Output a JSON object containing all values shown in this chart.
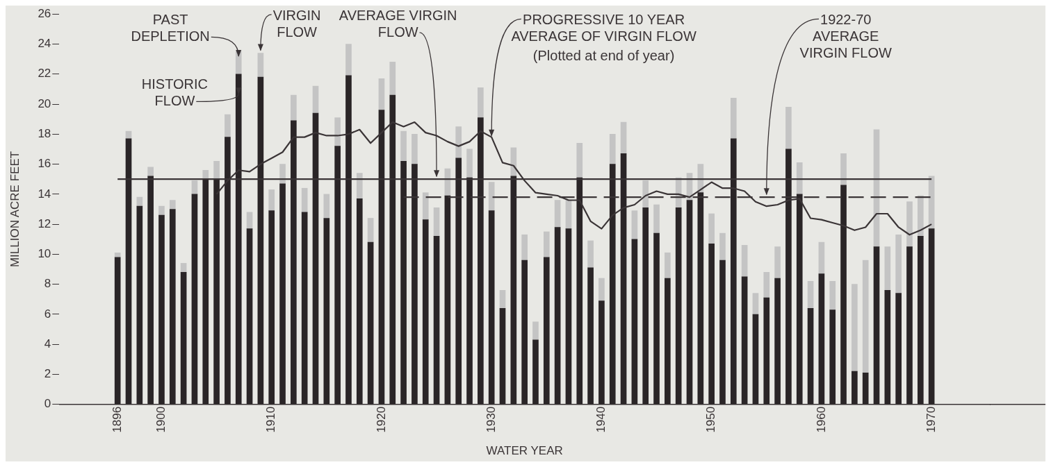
{
  "chart_data": {
    "type": "bar",
    "xlabel": "WATER YEAR",
    "ylabel": "MILLION ACRE FEET",
    "x": [
      1896,
      1897,
      1898,
      1899,
      1900,
      1901,
      1902,
      1903,
      1904,
      1905,
      1906,
      1907,
      1908,
      1909,
      1910,
      1911,
      1912,
      1913,
      1914,
      1915,
      1916,
      1917,
      1918,
      1919,
      1920,
      1921,
      1922,
      1923,
      1924,
      1925,
      1926,
      1927,
      1928,
      1929,
      1930,
      1931,
      1932,
      1933,
      1934,
      1935,
      1936,
      1937,
      1938,
      1939,
      1940,
      1941,
      1942,
      1943,
      1944,
      1945,
      1946,
      1947,
      1948,
      1949,
      1950,
      1951,
      1952,
      1953,
      1954,
      1955,
      1956,
      1957,
      1958,
      1959,
      1960,
      1961,
      1962,
      1963,
      1964,
      1965,
      1966,
      1967,
      1968,
      1969,
      1970
    ],
    "stacked": true,
    "series": [
      {
        "color": "#2a2527",
        "values": [
          9.8,
          17.7,
          13.2,
          15.2,
          12.6,
          13.0,
          8.8,
          14.0,
          15.0,
          15.0,
          17.8,
          22.0,
          11.7,
          21.8,
          12.9,
          14.7,
          18.9,
          12.8,
          19.4,
          12.4,
          17.2,
          21.9,
          13.7,
          10.8,
          19.6,
          20.6,
          16.2,
          16.0,
          12.3,
          11.2,
          13.9,
          16.4,
          15.1,
          19.1,
          12.9,
          6.4,
          15.2,
          9.6,
          4.3,
          9.8,
          11.8,
          11.7,
          15.1,
          9.1,
          6.9,
          16.0,
          16.7,
          11.0,
          13.1,
          11.4,
          8.4,
          13.1,
          13.6,
          14.1,
          10.7,
          9.6,
          17.7,
          8.5,
          6.0,
          7.1,
          8.4,
          17.0,
          14.0,
          6.4,
          8.7,
          6.3,
          14.6,
          2.2,
          2.1,
          10.5,
          7.6,
          7.4,
          10.5,
          11.2,
          11.7
        ]
      },
      {
        "color": "#c4c4c4",
        "values": [
          0.3,
          0.5,
          0.6,
          0.6,
          0.6,
          0.6,
          0.6,
          0.9,
          0.6,
          1.2,
          1.5,
          1.5,
          1.1,
          1.6,
          1.4,
          1.3,
          1.7,
          1.6,
          1.8,
          1.6,
          1.9,
          2.1,
          1.7,
          1.6,
          2.1,
          2.2,
          2.0,
          2.0,
          1.8,
          1.9,
          1.8,
          2.1,
          1.9,
          2.0,
          1.9,
          1.2,
          1.9,
          1.7,
          1.2,
          1.7,
          1.8,
          1.9,
          2.3,
          1.8,
          1.5,
          2.0,
          2.1,
          1.9,
          1.8,
          1.9,
          1.7,
          2.0,
          1.8,
          1.9,
          2.0,
          1.8,
          2.7,
          2.1,
          1.4,
          1.7,
          2.1,
          2.8,
          2.1,
          1.8,
          2.1,
          1.9,
          2.1,
          5.8,
          7.5,
          7.8,
          2.9,
          3.9,
          3.0,
          2.7,
          3.5
        ]
      },
      {
        "type": "line",
        "color": "#3a3436",
        "x": [
          1905,
          1906,
          1907,
          1908,
          1909,
          1910,
          1911,
          1912,
          1913,
          1914,
          1915,
          1916,
          1917,
          1918,
          1919,
          1920,
          1921,
          1922,
          1923,
          1924,
          1925,
          1926,
          1927,
          1928,
          1929,
          1930,
          1931,
          1932,
          1933,
          1934,
          1935,
          1936,
          1937,
          1938,
          1939,
          1940,
          1941,
          1942,
          1943,
          1944,
          1945,
          1946,
          1947,
          1948,
          1949,
          1950,
          1951,
          1952,
          1953,
          1954,
          1955,
          1956,
          1957,
          1958,
          1959,
          1960,
          1961,
          1962,
          1963,
          1964,
          1965,
          1966,
          1967,
          1968,
          1969,
          1970
        ],
        "values": [
          14.0,
          14.9,
          15.6,
          15.5,
          16.0,
          16.4,
          16.8,
          17.8,
          17.8,
          18.1,
          17.9,
          17.9,
          18.0,
          18.3,
          17.4,
          18.1,
          18.8,
          18.5,
          18.8,
          18.1,
          17.9,
          17.5,
          17.2,
          17.5,
          18.2,
          17.8,
          16.1,
          15.9,
          14.9,
          14.1,
          14.0,
          13.9,
          13.6,
          13.6,
          12.2,
          11.7,
          12.6,
          13.1,
          13.3,
          13.9,
          14.2,
          14.0,
          14.0,
          13.8,
          14.3,
          14.8,
          14.4,
          14.4,
          14.2,
          13.5,
          13.2,
          13.3,
          13.6,
          13.7,
          12.4,
          12.3,
          12.1,
          11.9,
          11.6,
          11.8,
          12.7,
          12.7,
          11.8,
          11.3,
          11.6,
          12.0
        ]
      },
      {
        "type": "line",
        "color": "#3a3436",
        "x": [
          1896,
          1970
        ],
        "values": [
          15.0,
          15.0
        ]
      },
      {
        "type": "line",
        "color": "#3a3436",
        "line_style": "dashed",
        "x": [
          1922,
          1970
        ],
        "values": [
          13.8,
          13.8
        ]
      }
    ],
    "xlim": [
      1895.4,
      1970.6
    ],
    "xticks": [
      1896,
      1900,
      1910,
      1920,
      1930,
      1940,
      1950,
      1960,
      1970
    ],
    "ylim": [
      0,
      26
    ],
    "yticks": [
      0,
      2,
      4,
      6,
      8,
      10,
      12,
      14,
      16,
      18,
      20,
      22,
      24,
      26
    ],
    "marker": "none",
    "legend": false,
    "annotations": [
      {
        "text": "PAST DEPLETION",
        "x": 1907,
        "y": 23.0
      },
      {
        "text": "HISTORIC FLOW",
        "x": 1907,
        "y": 20.5
      },
      {
        "text": "VIRGIN FLOW",
        "x": 1909,
        "y": 23.4
      },
      {
        "text": "AVERAGE VIRGIN FLOW",
        "x": 1925,
        "y": 15.0
      },
      {
        "text": "PROGRESSIVE 10 YEAR AVERAGE OF VIRGIN FLOW",
        "x": 1930,
        "y": 17.7
      },
      "(Plotted at end of year)",
      {
        "text": "1922-70 AVERAGE VIRGIN FLOW",
        "x": 1955,
        "y": 13.8
      }
    ]
  }
}
